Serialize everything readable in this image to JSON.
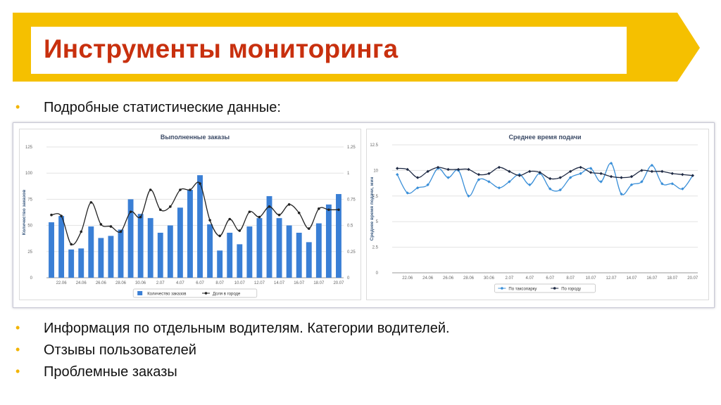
{
  "slide": {
    "title": "Инструменты мониторинга",
    "colors": {
      "banner": "#f5c000",
      "title": "#c8300e",
      "bullet": "#f2b400"
    },
    "bullets_top": [
      "Подробные статистические данные:"
    ],
    "bullets_bottom": [
      "Информация по отдельным водителям. Категории водителей.",
      "Отзывы пользователей",
      "Проблемные заказы"
    ]
  },
  "chart_data": [
    {
      "type": "bar",
      "title": "Выполненные заказы",
      "ylabel": "Количество заказов",
      "y2label": "Доля в городе, %",
      "ylim": [
        0,
        125
      ],
      "y2lim": [
        0,
        1.25
      ],
      "yticks": [
        "0",
        "25",
        "50",
        "75",
        "100",
        "125"
      ],
      "y2ticks": [
        "0",
        "0.25",
        "0.5",
        "0.75",
        "1",
        "1.25"
      ],
      "categories": [
        "21.06",
        "22.06",
        "23.06",
        "24.06",
        "25.06",
        "26.06",
        "27.06",
        "28.06",
        "29.06",
        "30.06",
        "01.07",
        "2.07",
        "3.07",
        "4.07",
        "5.07",
        "6.07",
        "7.07",
        "8.07",
        "9.07",
        "10.07",
        "11.07",
        "12.07",
        "13.07",
        "14.07",
        "15.07",
        "16.07",
        "17.07",
        "18.07",
        "19.07",
        "20.07"
      ],
      "xticks_labels": [
        "22.06",
        "24.06",
        "26.06",
        "28.06",
        "30.06",
        "2.07",
        "4.07",
        "6.07",
        "8.07",
        "10.07",
        "12.07",
        "14.07",
        "16.07",
        "18.07",
        "20.07"
      ],
      "series": [
        {
          "name": "Количество заказов",
          "kind": "bar",
          "color": "#3a7fd5",
          "values": [
            53,
            59,
            27,
            28,
            49,
            38,
            40,
            46,
            75,
            61,
            57,
            43,
            50,
            67,
            84,
            98,
            51,
            26,
            43,
            32,
            49,
            57,
            78,
            57,
            50,
            43,
            34,
            52,
            70,
            80
          ]
        },
        {
          "name": "Доля в городе",
          "kind": "line",
          "color": "#222222",
          "values": [
            0.6,
            0.59,
            0.32,
            0.44,
            0.72,
            0.51,
            0.49,
            0.44,
            0.63,
            0.58,
            0.84,
            0.65,
            0.68,
            0.84,
            0.84,
            0.9,
            0.55,
            0.4,
            0.56,
            0.45,
            0.63,
            0.58,
            0.68,
            0.6,
            0.7,
            0.62,
            0.47,
            0.66,
            0.65,
            0.65
          ]
        }
      ],
      "legend_position": "bottom"
    },
    {
      "type": "line",
      "title": "Среднее время подачи",
      "ylabel": "Среднее время подачи, мин",
      "ylim": [
        0,
        12.5
      ],
      "yticks": [
        "0",
        "2.5",
        "5",
        "7.5",
        "10",
        "12.5"
      ],
      "categories": [
        "21.06",
        "22.06",
        "23.06",
        "24.06",
        "25.06",
        "26.06",
        "27.06",
        "28.06",
        "29.06",
        "30.06",
        "01.07",
        "2.07",
        "3.07",
        "4.07",
        "5.07",
        "6.07",
        "7.07",
        "8.07",
        "9.07",
        "10.07",
        "11.07",
        "12.07",
        "13.07",
        "14.07",
        "15.07",
        "16.07",
        "17.07",
        "18.07",
        "19.07",
        "20.07"
      ],
      "xticks_labels": [
        "22.06",
        "24.06",
        "26.06",
        "28.06",
        "30.06",
        "2.07",
        "4.07",
        "6.07",
        "8.07",
        "10.07",
        "12.07",
        "14.07",
        "16.07",
        "18.07",
        "20.07"
      ],
      "series": [
        {
          "name": "По таксопарку",
          "color": "#3a8fd8",
          "values": [
            9.6,
            7.8,
            8.3,
            8.6,
            10.2,
            9.3,
            10.0,
            7.5,
            9.1,
            8.9,
            8.3,
            8.9,
            9.6,
            8.6,
            9.7,
            8.2,
            8.1,
            9.3,
            9.7,
            10.2,
            8.9,
            10.7,
            7.7,
            8.6,
            8.9,
            10.5,
            8.7,
            8.7,
            8.2,
            9.5
          ]
        },
        {
          "name": "По городу",
          "color": "#1f2a44",
          "values": [
            10.2,
            10.1,
            9.3,
            9.9,
            10.3,
            10.1,
            10.1,
            10.1,
            9.6,
            9.7,
            10.3,
            9.9,
            9.5,
            9.9,
            9.8,
            9.2,
            9.3,
            9.9,
            10.3,
            9.8,
            9.7,
            9.4,
            9.3,
            9.4,
            10.0,
            9.9,
            9.9,
            9.7,
            9.6,
            9.5
          ]
        }
      ],
      "legend_position": "bottom"
    }
  ]
}
